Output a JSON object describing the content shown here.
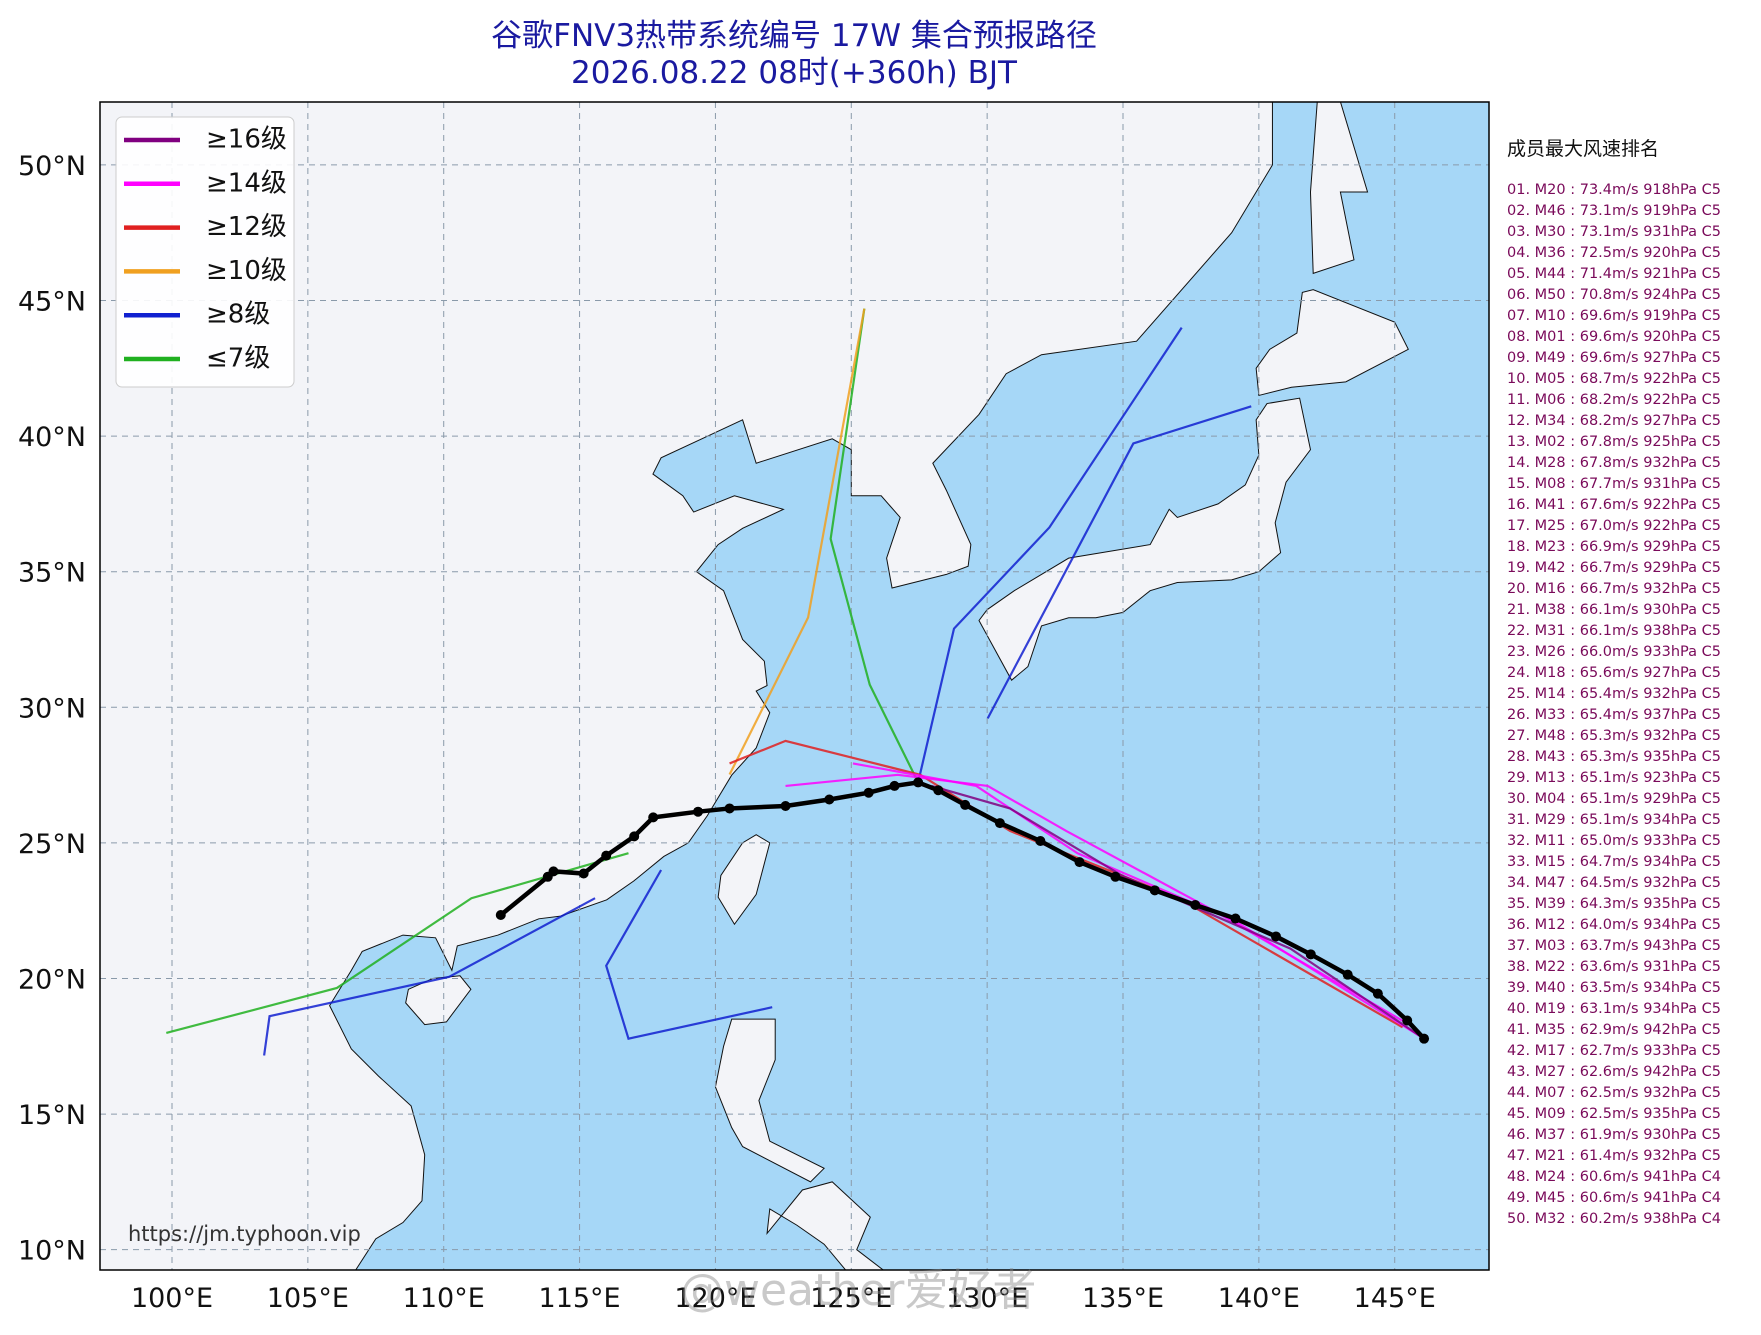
{
  "map": {
    "title": "谷歌FNV3热带系统编号 17W 集合预报路径",
    "subtitle": "2026.08.22 08时(+360h) BJT",
    "xlim": [
      97.35,
      148.47
    ],
    "ylim": [
      9.25,
      52.32
    ],
    "grid": true,
    "xticks": [
      {
        "value": 100,
        "label": "100°E"
      },
      {
        "value": 105,
        "label": "105°E"
      },
      {
        "value": 110,
        "label": "110°E"
      },
      {
        "value": 115,
        "label": "115°E"
      },
      {
        "value": 120,
        "label": "120°E"
      },
      {
        "value": 125,
        "label": "125°E"
      },
      {
        "value": 130,
        "label": "130°E"
      },
      {
        "value": 135,
        "label": "135°E"
      },
      {
        "value": 140,
        "label": "140°E"
      },
      {
        "value": 145,
        "label": "145°E"
      }
    ],
    "yticks": [
      {
        "value": 10,
        "label": "10°N"
      },
      {
        "value": 15,
        "label": "15°N"
      },
      {
        "value": 20,
        "label": "20°N"
      },
      {
        "value": 25,
        "label": "25°N"
      },
      {
        "value": 30,
        "label": "30°N"
      },
      {
        "value": 35,
        "label": "35°N"
      },
      {
        "value": 40,
        "label": "40°N"
      },
      {
        "value": 45,
        "label": "45°N"
      },
      {
        "value": 50,
        "label": "50°N"
      }
    ],
    "legend": [
      {
        "name": "≥16级",
        "color": "#800080"
      },
      {
        "name": "≥14级",
        "color": "#ff00ff"
      },
      {
        "name": "≥12级",
        "color": "#e02020"
      },
      {
        "name": "≥10级",
        "color": "#f0a020"
      },
      {
        "name": "≥8级",
        "color": "#1020d0"
      },
      {
        "name": "≤7级",
        "color": "#20b020"
      }
    ],
    "tracks": [
      {
        "color": "#20b020",
        "lon": [
          127.46,
          125.68,
          124.24,
          125.48
        ],
        "lat": [
          27.23,
          30.83,
          36.21,
          44.7
        ]
      },
      {
        "color": "#1020d0",
        "lon": [
          127.46,
          128.78,
          132.29,
          137.16
        ],
        "lat": [
          27.23,
          32.9,
          36.63,
          44.0
        ]
      },
      {
        "color": "#1020d0",
        "lon": [
          130.02,
          135.38,
          139.72
        ],
        "lat": [
          29.59,
          39.73,
          41.1
        ]
      },
      {
        "color": "#f0a020",
        "lon": [
          120.52,
          123.41,
          125.48
        ],
        "lat": [
          27.52,
          33.31,
          44.7
        ]
      },
      {
        "color": "#e02020",
        "lon": [
          145.29,
          137.04,
          130.84,
          127.54,
          122.58,
          120.52
        ],
        "lat": [
          18.2,
          22.96,
          25.44,
          27.51,
          28.76,
          27.93
        ]
      },
      {
        "color": "#ff00ff",
        "lon": [
          146.08,
          139.1,
          133.32,
          129.6,
          125.06
        ],
        "lat": [
          17.78,
          22.13,
          24.62,
          27.1,
          27.93
        ]
      },
      {
        "color": "#ff00ff",
        "lon": [
          145.7,
          138.27,
          132.91,
          130.02,
          126.71,
          122.58
        ],
        "lat": [
          18.2,
          22.54,
          25.44,
          27.1,
          27.51,
          27.1
        ]
      },
      {
        "color": "#800080",
        "lon": [
          146.08,
          141.16,
          134.97,
          130.84,
          127.95
        ],
        "lat": [
          17.78,
          21.1,
          23.79,
          26.27,
          27.1
        ]
      },
      {
        "color": "#20b020",
        "lon": [
          116.8,
          111.02,
          106.07,
          99.79
        ],
        "lat": [
          24.62,
          22.96,
          19.65,
          17.99
        ]
      },
      {
        "color": "#1020d0",
        "lon": [
          115.57,
          110.2,
          103.59,
          103.39
        ],
        "lat": [
          22.96,
          20.06,
          18.61,
          17.16
        ]
      },
      {
        "color": "#1020d0",
        "lon": [
          118.0,
          115.98,
          116.8,
          122.09
        ],
        "lat": [
          24.0,
          20.47,
          17.78,
          18.94
        ]
      }
    ],
    "mean_track": {
      "color": "#000000",
      "lon": [
        146.08,
        145.46,
        144.38,
        143.27,
        141.91,
        140.63,
        139.14,
        137.66,
        136.17,
        134.72,
        133.4,
        131.96,
        130.47,
        129.19,
        128.2,
        127.46,
        126.59,
        125.64,
        124.19,
        122.58,
        120.52,
        119.36,
        117.71,
        117.01,
        115.98,
        115.15,
        114.04,
        113.83,
        112.1
      ],
      "lat": [
        17.78,
        18.45,
        19.44,
        20.14,
        20.89,
        21.55,
        22.21,
        22.71,
        23.25,
        23.75,
        24.29,
        25.07,
        25.73,
        26.4,
        26.94,
        27.23,
        27.1,
        26.85,
        26.6,
        26.36,
        26.27,
        26.15,
        25.94,
        25.24,
        24.53,
        23.87,
        23.95,
        23.75,
        22.34
      ]
    }
  },
  "ranking": {
    "title": "成员最大风速排名",
    "items": [
      "01. M20 : 73.4m/s 918hPa C5",
      "02. M46 : 73.1m/s 919hPa C5",
      "03. M30 : 73.1m/s 931hPa C5",
      "04. M36 : 72.5m/s 920hPa C5",
      "05. M44 : 71.4m/s 921hPa C5",
      "06. M50 : 70.8m/s 924hPa C5",
      "07. M10 : 69.6m/s 919hPa C5",
      "08. M01 : 69.6m/s 920hPa C5",
      "09. M49 : 69.6m/s 927hPa C5",
      "10. M05 : 68.7m/s 922hPa C5",
      "11. M06 : 68.2m/s 922hPa C5",
      "12. M34 : 68.2m/s 927hPa C5",
      "13. M02 : 67.8m/s 925hPa C5",
      "14. M28 : 67.8m/s 932hPa C5",
      "15. M08 : 67.7m/s 931hPa C5",
      "16. M41 : 67.6m/s 922hPa C5",
      "17. M25 : 67.0m/s 922hPa C5",
      "18. M23 : 66.9m/s 929hPa C5",
      "19. M42 : 66.7m/s 929hPa C5",
      "20. M16 : 66.7m/s 932hPa C5",
      "21. M38 : 66.1m/s 930hPa C5",
      "22. M31 : 66.1m/s 938hPa C5",
      "23. M26 : 66.0m/s 933hPa C5",
      "24. M18 : 65.6m/s 927hPa C5",
      "25. M14 : 65.4m/s 932hPa C5",
      "26. M33 : 65.4m/s 937hPa C5",
      "27. M48 : 65.3m/s 932hPa C5",
      "28. M43 : 65.3m/s 935hPa C5",
      "29. M13 : 65.1m/s 923hPa C5",
      "30. M04 : 65.1m/s 929hPa C5",
      "31. M29 : 65.1m/s 934hPa C5",
      "32. M11 : 65.0m/s 933hPa C5",
      "33. M15 : 64.7m/s 934hPa C5",
      "34. M47 : 64.5m/s 932hPa C5",
      "35. M39 : 64.3m/s 935hPa C5",
      "36. M12 : 64.0m/s 934hPa C5",
      "37. M03 : 63.7m/s 943hPa C5",
      "38. M22 : 63.6m/s 931hPa C5",
      "39. M40 : 63.5m/s 934hPa C5",
      "40. M19 : 63.1m/s 934hPa C5",
      "41. M35 : 62.9m/s 942hPa C5",
      "42. M17 : 62.7m/s 933hPa C5",
      "43. M27 : 62.6m/s 942hPa C5",
      "44. M07 : 62.5m/s 932hPa C5",
      "45. M09 : 62.5m/s 935hPa C5",
      "46. M37 : 61.9m/s 930hPa C5",
      "47. M21 : 61.4m/s 932hPa C5",
      "48. M24 : 60.6m/s 941hPa C4",
      "49. M45 : 60.6m/s 941hPa C4",
      "50. M32 : 60.2m/s 938hPa C4"
    ]
  },
  "source": "https://jm.typhoon.vip",
  "watermark": "@weather爱好者"
}
